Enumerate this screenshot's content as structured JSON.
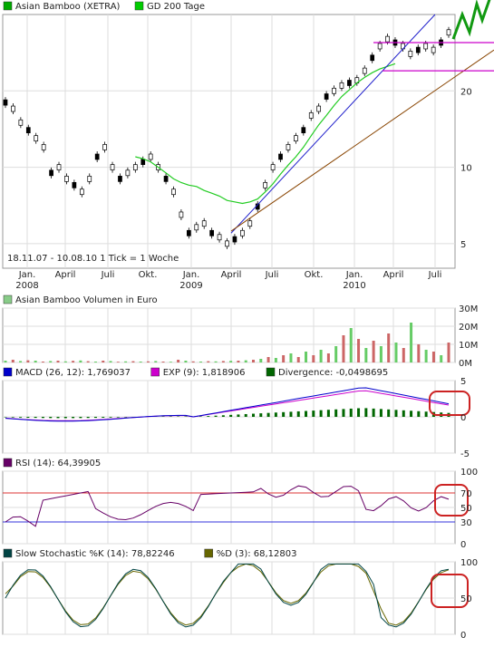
{
  "chart_data": [
    {
      "panel": "price",
      "type": "line",
      "legend": [
        {
          "name": "Asian Bamboo (XETRA)",
          "color": "#00aa00"
        },
        {
          "name": "GD 200 Tage",
          "color": "#00cc00"
        }
      ],
      "yaxis_labels": [
        "5",
        "10",
        "20"
      ],
      "yscale": "log",
      "ylim": [
        4,
        40
      ],
      "x_ticks": [
        "Jan.",
        "April",
        "Juli",
        "Okt.",
        "Jan.",
        "April",
        "Juli",
        "Okt.",
        "Jan.",
        "April",
        "Juli"
      ],
      "year_labels": [
        "2008",
        "2009",
        "2010"
      ],
      "date_range": "18.11.07 - 10.08.10",
      "tick_note": "1 Tick = 1 Woche",
      "series": [
        {
          "name": "Asian Bamboo (XETRA)",
          "values": [
            18,
            17,
            15,
            14,
            13,
            12,
            9.5,
            10,
            9,
            8.5,
            8,
            9,
            11,
            12,
            10,
            9,
            9.5,
            10,
            10.5,
            11,
            10,
            9,
            8,
            6.5,
            5.5,
            5.8,
            6,
            5.5,
            5.3,
            5,
            5.2,
            5.5,
            6,
            7,
            8.5,
            10,
            11,
            12,
            13,
            14,
            16,
            17,
            19,
            20,
            21,
            21.5,
            22,
            24,
            27,
            30,
            32,
            31,
            30,
            28,
            29,
            30,
            29,
            31,
            34
          ]
        },
        {
          "name": "GD 200 Tage",
          "values": [
            null,
            null,
            null,
            null,
            null,
            null,
            null,
            null,
            null,
            null,
            null,
            null,
            null,
            null,
            null,
            null,
            null,
            11,
            10.8,
            10.5,
            10,
            9.5,
            9,
            8.7,
            8.5,
            8.4,
            8.1,
            7.9,
            7.7,
            7.4,
            7.3,
            7.2,
            7.3,
            7.5,
            8,
            8.6,
            9.4,
            10.2,
            11,
            12,
            13.3,
            14.7,
            16,
            17.5,
            19,
            20.2,
            21.5,
            22.6,
            23.6,
            24.4,
            25,
            25.6
          ]
        }
      ],
      "annotation_lines": "trendlines and horizontal resistance/support marks"
    },
    {
      "panel": "volume",
      "type": "bar",
      "legend": [
        {
          "name": "Asian Bamboo Volumen in Euro",
          "color": "#88cc88"
        }
      ],
      "yaxis_labels": [
        "0M",
        "10M",
        "20M",
        "30M"
      ],
      "ylim": [
        0,
        30
      ],
      "values": [
        1,
        1.5,
        0.8,
        1.2,
        1,
        0.5,
        0.8,
        1,
        0.6,
        0.9,
        1.1,
        0.7,
        0.5,
        1,
        0.8,
        0.4,
        0.6,
        0.7,
        0.5,
        0.6,
        0.8,
        0.5,
        0.4,
        1.5,
        1,
        0.6,
        0.5,
        0.7,
        0.6,
        0.8,
        0.9,
        1,
        1.2,
        1.5,
        2,
        3,
        2.5,
        4,
        5,
        3,
        6,
        4,
        7,
        5,
        9,
        15,
        19,
        13,
        8,
        12,
        9,
        16,
        11,
        8,
        22,
        10,
        7,
        6,
        4,
        11
      ]
    },
    {
      "panel": "macd",
      "type": "line",
      "legend": [
        {
          "name": "MACD (26, 12): 1,769037",
          "color": "#0000cc"
        },
        {
          "name": "EXP (9): 1,818906",
          "color": "#cc00cc"
        },
        {
          "name": "Divergence: -0,0498695",
          "color": "#006600"
        }
      ],
      "yaxis_labels": [
        "-5",
        "0",
        "5"
      ],
      "ylim": [
        -5,
        5
      ]
    },
    {
      "panel": "rsi",
      "type": "line",
      "legend": [
        {
          "name": "RSI (14): 64,39905",
          "color": "#660066"
        }
      ],
      "yaxis_labels": [
        "0",
        "30",
        "50",
        "70",
        "100"
      ],
      "ylim": [
        0,
        100
      ]
    },
    {
      "panel": "stoch",
      "type": "line",
      "legend": [
        {
          "name": "Slow Stochastic %K (14): 78,82246",
          "color": "#004444"
        },
        {
          "name": "%D (3): 68,12803",
          "color": "#666600"
        }
      ],
      "yaxis_labels": [
        "0",
        "50",
        "100"
      ],
      "ylim": [
        0,
        100
      ]
    }
  ]
}
